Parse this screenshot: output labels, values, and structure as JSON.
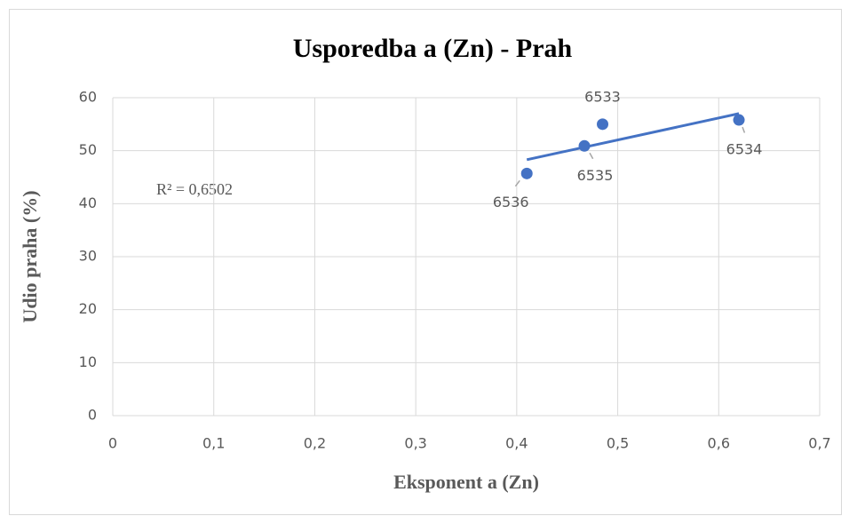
{
  "chart_data": {
    "type": "scatter",
    "title": "Usporedba a (Zn) - Prah",
    "xlabel": "Eksponent a (Zn)",
    "ylabel": "Udio praha (%)",
    "annotation": "R² = 0,6502",
    "series": [
      {
        "color": "#4472c4",
        "x": [
          0.41,
          0.467,
          0.485,
          0.62
        ],
        "values": [
          45.7,
          50.9,
          55.0,
          55.8
        ],
        "point_labels": [
          "6536",
          "6535",
          "6533",
          "6534"
        ]
      }
    ],
    "trendline": {
      "color": "#4472c4",
      "x": [
        0.41,
        0.62
      ],
      "values": [
        48.3,
        57.0
      ]
    },
    "xlim": [
      0,
      0.7
    ],
    "xticks": [
      0,
      {
        "value": 0.1,
        "label": "0,1"
      },
      {
        "value": 0.2,
        "label": "0,2"
      },
      {
        "value": 0.3,
        "label": "0,3"
      },
      {
        "value": 0.4,
        "label": "0,4"
      },
      {
        "value": 0.5,
        "label": "0,5"
      },
      {
        "value": 0.6,
        "label": "0,6"
      },
      {
        "value": 0.7,
        "label": "0,7"
      }
    ],
    "ylim": [
      0,
      60
    ],
    "yticks": [
      0,
      10,
      20,
      30,
      40,
      50,
      60
    ],
    "grid": true
  }
}
